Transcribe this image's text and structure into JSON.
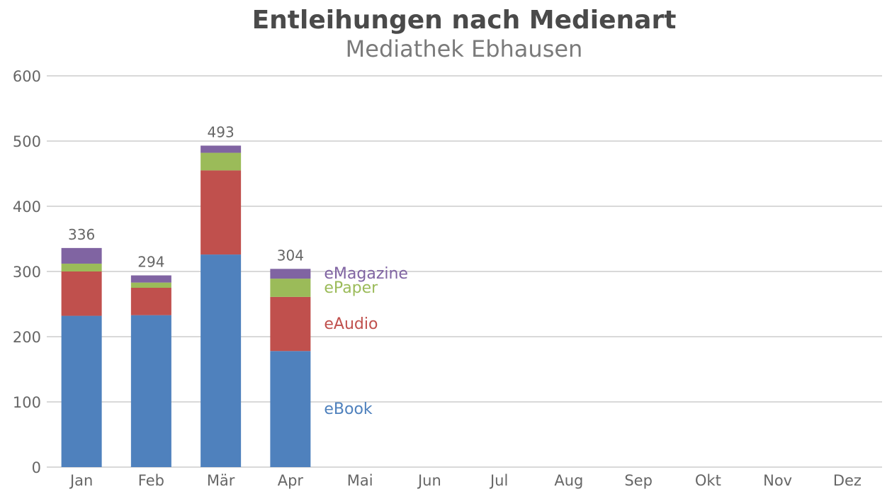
{
  "chart_data": {
    "type": "bar",
    "stacked": true,
    "title": "Entleihungen nach Medienart",
    "subtitle": "Mediathek Ebhausen",
    "categories": [
      "Jan",
      "Feb",
      "Mär",
      "Apr",
      "Mai",
      "Jun",
      "Jul",
      "Aug",
      "Sep",
      "Okt",
      "Nov",
      "Dez"
    ],
    "series": [
      {
        "name": "eBook",
        "color": "#4f81bd",
        "values": [
          232,
          233,
          326,
          178,
          null,
          null,
          null,
          null,
          null,
          null,
          null,
          null
        ]
      },
      {
        "name": "eAudio",
        "color": "#c0504d",
        "values": [
          68,
          42,
          129,
          83,
          null,
          null,
          null,
          null,
          null,
          null,
          null,
          null
        ]
      },
      {
        "name": "ePaper",
        "color": "#9bbb59",
        "values": [
          12,
          8,
          27,
          28,
          null,
          null,
          null,
          null,
          null,
          null,
          null,
          null
        ]
      },
      {
        "name": "eMagazine",
        "color": "#8064a2",
        "values": [
          24,
          11,
          11,
          15,
          null,
          null,
          null,
          null,
          null,
          null,
          null,
          null
        ]
      }
    ],
    "totals": [
      336,
      294,
      493,
      304,
      null,
      null,
      null,
      null,
      null,
      null,
      null,
      null
    ],
    "ylim": [
      0,
      600
    ],
    "yticks": [
      0,
      100,
      200,
      300,
      400,
      500,
      600
    ],
    "xlabel": "",
    "ylabel": "",
    "grid": true,
    "legend": "inline-right-of-last-bar"
  }
}
